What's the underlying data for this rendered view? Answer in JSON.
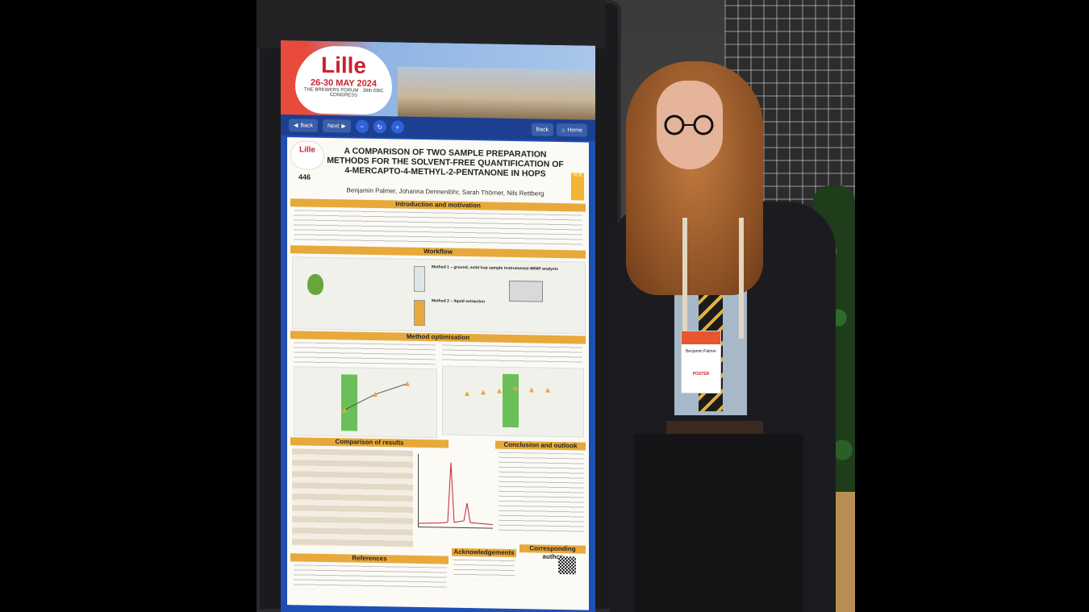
{
  "banner": {
    "brand": "Lille",
    "dates": "26-30 MAY 2024",
    "subtitle": "THE BREWERS FORUM · 39th EBC CONGRESS"
  },
  "toolbar": {
    "back_label": "Back",
    "next_label": "Next",
    "right_back_label": "Back",
    "home_label": "Home"
  },
  "poster": {
    "number": "446",
    "badge_text": "VLB",
    "title": "A COMPARISON OF TWO SAMPLE PREPARATION METHODS FOR THE SOLVENT-FREE QUANTIFICATION OF 4-MERCAPTO-4-METHYL-2-PENTANONE IN HOPS",
    "authors": "Benjamin Palmer, Johanna Dennenlöhr, Sarah Thörner, Nils Rettberg",
    "sections": {
      "intro": "Introduction and motivation",
      "workflow": "Workflow",
      "method_opt": "Method optimisation",
      "comparison": "Comparison of results",
      "conclusion": "Conclusion and outlook",
      "references": "References",
      "acknowledgements": "Acknowledgements",
      "corresponding": "Corresponding author"
    },
    "workflow_labels": {
      "method1": "Method 1 – ground, solid hop sample",
      "method2": "Method 2 – liquid extraction",
      "instrumental": "Instrumental 4MMP analysis"
    }
  },
  "person": {
    "badge_name": "Benjamin Palmer",
    "badge_role": "POSTER"
  },
  "colors": {
    "screen_blue": "#1e4fb5",
    "section_orange": "#e8a93b",
    "lille_red": "#c8232c",
    "chart_green": "#6bbf59"
  }
}
